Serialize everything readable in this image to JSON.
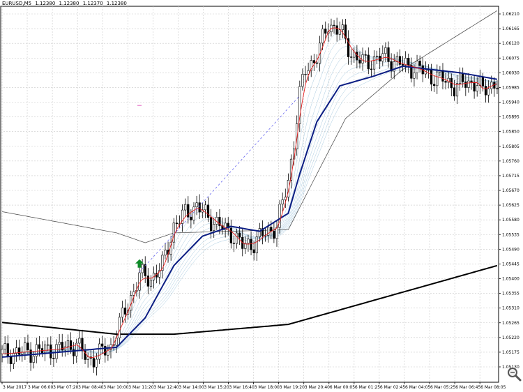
{
  "symbol_info": {
    "symbol": "EURUSD,M5",
    "open": "1.12380",
    "high": "1.12380",
    "low": "1.12370",
    "close": "1.12380"
  },
  "zoom": {
    "icon": "magnifier-icon"
  },
  "colors": {
    "candle_up": "#ffffff",
    "candle_down": "#000000",
    "grid": "#c9c9c9",
    "ma_fast": "#e81e1e",
    "ma_mid_dark": "#0b1d83",
    "ma_slow_gray": "#555555",
    "ma_long": "#000000",
    "ribbon": "#a9cbe0",
    "dashed": "#6a6af0",
    "signal_arrow": "#0e8a28",
    "pink_mark": "#e060c0"
  },
  "chart_data": {
    "type": "candlestick",
    "ylim": [
      1.0511,
      1.0626
    ],
    "y_ticks": [
      "1.06210",
      "1.06165",
      "1.06120",
      "1.06075",
      "1.06030",
      "1.05985",
      "1.05940",
      "1.05895",
      "1.05850",
      "1.05805",
      "1.05760",
      "1.05715",
      "1.05670",
      "1.05625",
      "1.05580",
      "1.05535",
      "1.05490",
      "1.05445",
      "1.05400",
      "1.05355",
      "1.05310",
      "1.05265",
      "1.05220",
      "1.05175",
      "1.05130"
    ],
    "x_ticks": [
      "3 Mar 2017",
      "3 Mar 06:00",
      "3 Mar 07:20",
      "3 Mar 08:40",
      "3 Mar 10:00",
      "3 Mar 11:20",
      "3 Mar 12:40",
      "3 Mar 14:00",
      "3 Mar 15:20",
      "3 Mar 16:40",
      "3 Mar 18:00",
      "3 Mar 19:20",
      "3 Mar 20:40",
      "6 Mar 00:05",
      "6 Mar 01:25",
      "6 Mar 02:45",
      "6 Mar 04:05",
      "6 Mar 05:25",
      "6 Mar 06:45",
      "6 Mar 08:05"
    ],
    "bar_count": 174,
    "price_path": [
      [
        0,
        1.0517
      ],
      [
        20,
        1.05185
      ],
      [
        26,
        1.052
      ],
      [
        30,
        1.0515
      ],
      [
        34,
        1.0517
      ],
      [
        38,
        1.0519
      ],
      [
        40,
        1.0524
      ],
      [
        44,
        1.0532
      ],
      [
        48,
        1.0541
      ],
      [
        52,
        1.054
      ],
      [
        56,
        1.0544
      ],
      [
        60,
        1.0556
      ],
      [
        64,
        1.056
      ],
      [
        68,
        1.0562
      ],
      [
        72,
        1.0559
      ],
      [
        76,
        1.0556
      ],
      [
        80,
        1.0554
      ],
      [
        84,
        1.055
      ],
      [
        88,
        1.0551
      ],
      [
        92,
        1.0554
      ],
      [
        96,
        1.0556
      ],
      [
        100,
        1.057
      ],
      [
        102,
        1.0582
      ],
      [
        104,
        1.0596
      ],
      [
        106,
        1.0604
      ],
      [
        110,
        1.0608
      ],
      [
        114,
        1.0618
      ],
      [
        118,
        1.0616
      ],
      [
        122,
        1.0609
      ],
      [
        126,
        1.0606
      ],
      [
        130,
        1.0607
      ],
      [
        134,
        1.0608
      ],
      [
        138,
        1.0606
      ],
      [
        142,
        1.0605
      ],
      [
        146,
        1.0604
      ],
      [
        150,
        1.0602
      ],
      [
        154,
        1.0601
      ],
      [
        158,
        1.0599
      ],
      [
        162,
        1.06
      ],
      [
        166,
        1.06
      ],
      [
        168,
        1.0597
      ],
      [
        170,
        1.0599
      ],
      [
        173,
        1.06
      ]
    ],
    "indicators": {
      "long_ma": [
        [
          0,
          1.05266
        ],
        [
          40,
          1.0523
        ],
        [
          60,
          1.0523
        ],
        [
          100,
          1.0526
        ],
        [
          173,
          1.0544
        ]
      ],
      "slow_gray_ma": [
        [
          0,
          1.05605
        ],
        [
          40,
          1.0554
        ],
        [
          50,
          1.0551
        ],
        [
          60,
          1.0554
        ],
        [
          100,
          1.0555
        ],
        [
          120,
          1.0589
        ],
        [
          140,
          1.0604
        ],
        [
          173,
          1.0622
        ]
      ],
      "mid_blue_ma": [
        [
          0,
          1.0516
        ],
        [
          40,
          1.0519
        ],
        [
          50,
          1.0528
        ],
        [
          60,
          1.0544
        ],
        [
          70,
          1.0553
        ],
        [
          80,
          1.0556
        ],
        [
          90,
          1.05545
        ],
        [
          100,
          1.056
        ],
        [
          104,
          1.0572
        ],
        [
          110,
          1.0588
        ],
        [
          118,
          1.0599
        ],
        [
          130,
          1.0602
        ],
        [
          140,
          1.0605
        ],
        [
          150,
          1.0604
        ],
        [
          160,
          1.0603
        ],
        [
          173,
          1.0601
        ]
      ]
    },
    "annotations": {
      "signal_arrow": {
        "bar": 48,
        "price": 1.0544
      },
      "dashed_line": [
        [
          48,
          1.0542
        ],
        [
          104,
          1.0596
        ]
      ],
      "pink_mark": {
        "bar": 48,
        "price": 1.0593
      }
    },
    "grid": true
  }
}
